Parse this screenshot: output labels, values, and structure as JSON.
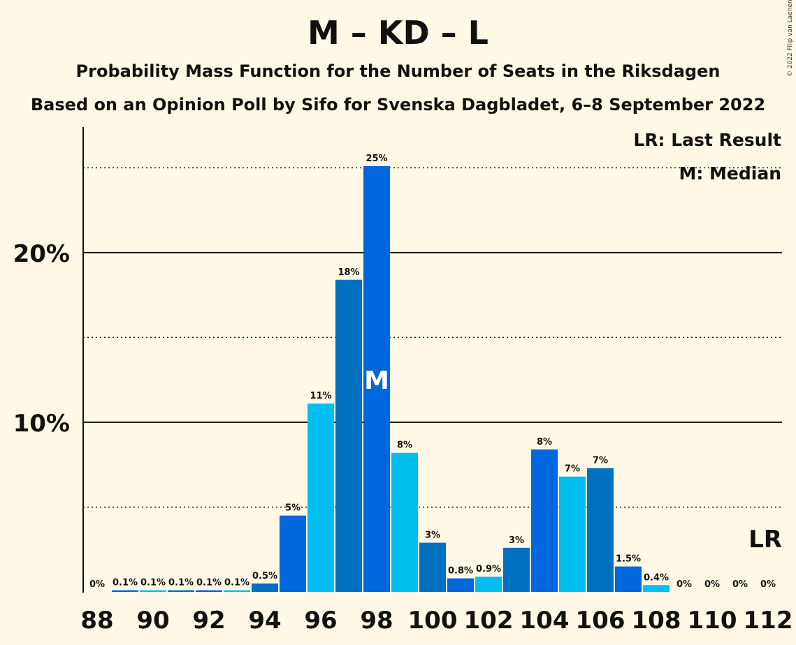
{
  "copyright": "© 2022 Filip van Laenen",
  "chart_data": {
    "type": "bar",
    "title": "M – KD – L",
    "subtitle": "Probability Mass Function for the Number of Seats in the Riksdagen",
    "subtitle2": "Based on an Opinion Poll by Sifo for Svenska Dagbladet, 6–8 September 2022",
    "xlabel": "",
    "ylabel": "",
    "x": [
      88,
      89,
      90,
      91,
      92,
      93,
      94,
      95,
      96,
      97,
      98,
      99,
      100,
      101,
      102,
      103,
      104,
      105,
      106,
      107,
      108,
      109,
      110,
      111,
      112
    ],
    "values": [
      0,
      0.1,
      0.1,
      0.1,
      0.1,
      0.1,
      0.5,
      4.5,
      11.1,
      18.4,
      25.1,
      8.2,
      2.9,
      0.8,
      0.9,
      2.6,
      8.4,
      6.8,
      7.3,
      1.5,
      0.4,
      0,
      0,
      0,
      0
    ],
    "labels": [
      "0%",
      "0.1%",
      "0.1%",
      "0.1%",
      "0.1%",
      "0.1%",
      "0.5%",
      "5%",
      "11%",
      "18%",
      "25%",
      "8%",
      "3%",
      "0.8%",
      "0.9%",
      "3%",
      "8%",
      "7%",
      "7%",
      "1.5%",
      "0.4%",
      "0%",
      "0%",
      "0%",
      "0%"
    ],
    "x_tick_labels": [
      "88",
      "90",
      "92",
      "94",
      "96",
      "98",
      "100",
      "102",
      "104",
      "106",
      "108",
      "110",
      "112"
    ],
    "y_tick_labels": [
      {
        "value": 10,
        "label": "10%"
      },
      {
        "value": 20,
        "label": "20%"
      }
    ],
    "ylim": [
      0,
      27.4
    ],
    "grid": {
      "solid": [
        10,
        20
      ],
      "dotted": [
        5,
        15,
        25
      ]
    },
    "colors": [
      "#0070c0",
      "#0066dd",
      "#00bff0"
    ],
    "median": {
      "x": 98,
      "label": "M"
    },
    "last_result": {
      "x": 112,
      "label": "LR"
    },
    "legend": {
      "position": "top-right",
      "items": [
        "LR: Last Result",
        "M: Median"
      ]
    }
  }
}
